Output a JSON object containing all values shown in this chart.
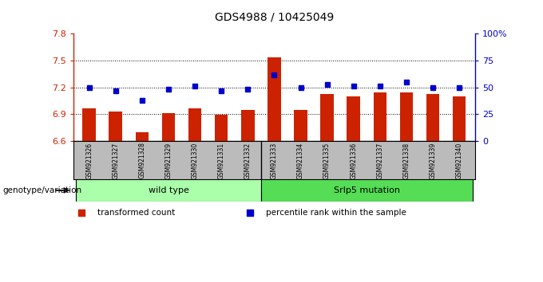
{
  "title": "GDS4988 / 10425049",
  "samples": [
    "GSM921326",
    "GSM921327",
    "GSM921328",
    "GSM921329",
    "GSM921330",
    "GSM921331",
    "GSM921332",
    "GSM921333",
    "GSM921334",
    "GSM921335",
    "GSM921336",
    "GSM921337",
    "GSM921338",
    "GSM921339",
    "GSM921340"
  ],
  "red_values": [
    6.97,
    6.93,
    6.7,
    6.91,
    6.97,
    6.89,
    6.95,
    7.54,
    6.95,
    7.13,
    7.1,
    7.14,
    7.14,
    7.13,
    7.1
  ],
  "blue_values": [
    50,
    47,
    38,
    48,
    51,
    47,
    48,
    62,
    50,
    53,
    51,
    51,
    55,
    50,
    50
  ],
  "ylim_left": [
    6.6,
    7.8
  ],
  "ylim_right": [
    0,
    100
  ],
  "yticks_left": [
    6.6,
    6.9,
    7.2,
    7.5,
    7.8
  ],
  "yticks_right": [
    0,
    25,
    50,
    75,
    100
  ],
  "ytick_labels_right": [
    "0",
    "25",
    "50",
    "75",
    "100%"
  ],
  "hlines": [
    6.9,
    7.2,
    7.5
  ],
  "groups": [
    {
      "label": "wild type",
      "start": 0,
      "end": 7,
      "color": "#aaffaa"
    },
    {
      "label": "Srlp5 mutation",
      "start": 7,
      "end": 15,
      "color": "#55dd55"
    }
  ],
  "bar_color": "#cc2200",
  "dot_color": "#0000cc",
  "bar_width": 0.5,
  "left_axis_color": "#cc2200",
  "right_axis_color": "#0000cc",
  "legend_items": [
    {
      "label": "transformed count",
      "color": "#cc2200"
    },
    {
      "label": "percentile rank within the sample",
      "color": "#0000cc"
    }
  ],
  "genotype_label": "genotype/variation",
  "background_color": "#ffffff",
  "tick_area_color": "#bbbbbb"
}
